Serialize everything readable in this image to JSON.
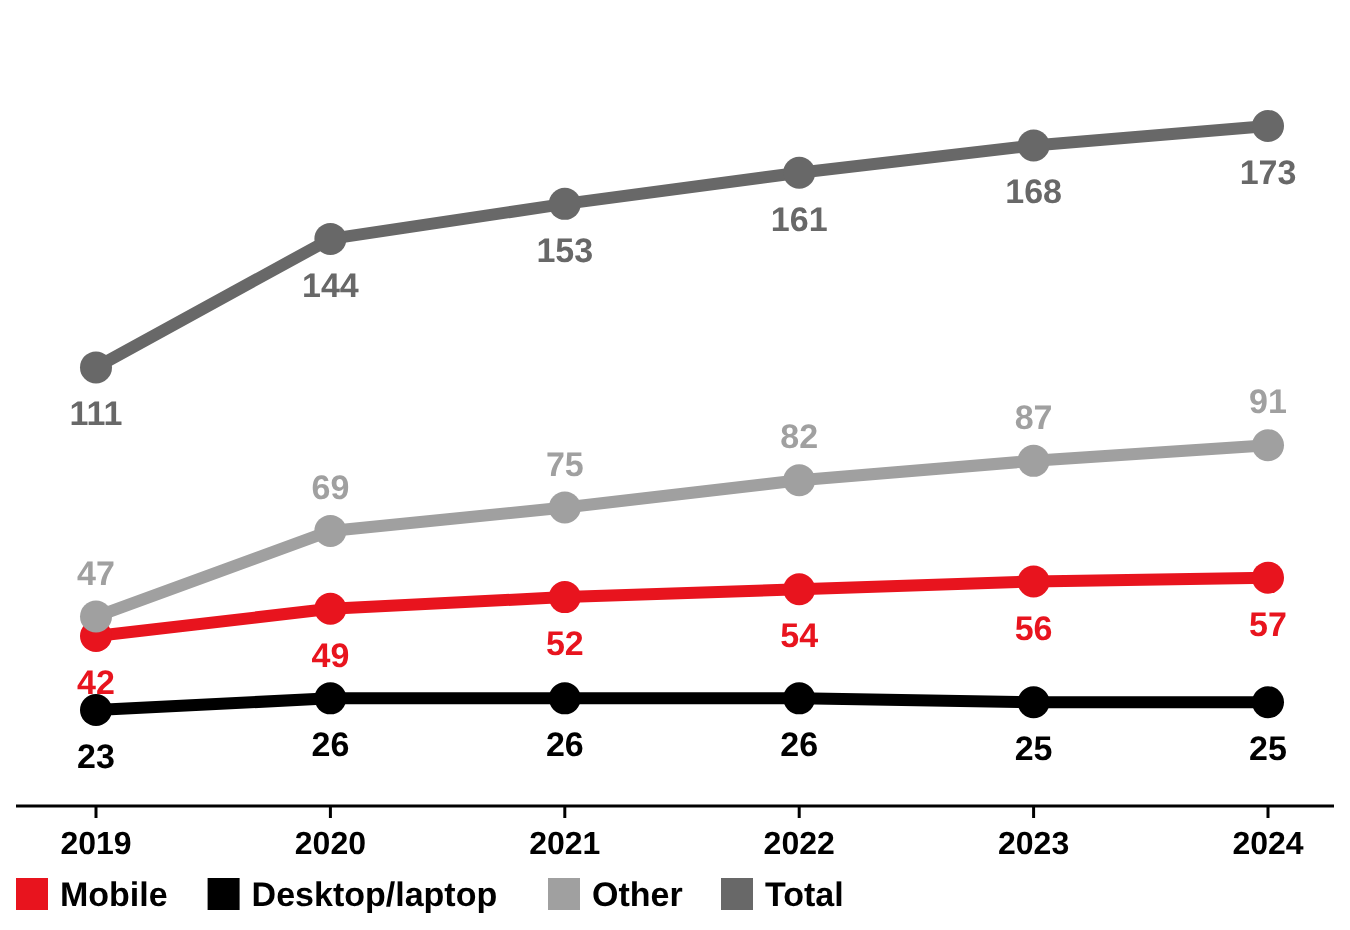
{
  "chart_data": {
    "type": "line",
    "categories": [
      "2019",
      "2020",
      "2021",
      "2022",
      "2023",
      "2024"
    ],
    "series": [
      {
        "name": "Mobile",
        "color": "#e8141e",
        "values": [
          42,
          49,
          52,
          54,
          56,
          57
        ]
      },
      {
        "name": "Desktop/laptop",
        "color": "#000000",
        "values": [
          23,
          26,
          26,
          26,
          25,
          25
        ]
      },
      {
        "name": "Other",
        "color": "#a0a0a0",
        "values": [
          47,
          69,
          75,
          82,
          87,
          91
        ]
      },
      {
        "name": "Total",
        "color": "#686868",
        "values": [
          111,
          144,
          153,
          161,
          168,
          173
        ]
      }
    ],
    "tick_labels": "x",
    "data_labels": true,
    "marker": "circle",
    "line_style": "solid",
    "grid": false,
    "legend": "bottom left"
  }
}
